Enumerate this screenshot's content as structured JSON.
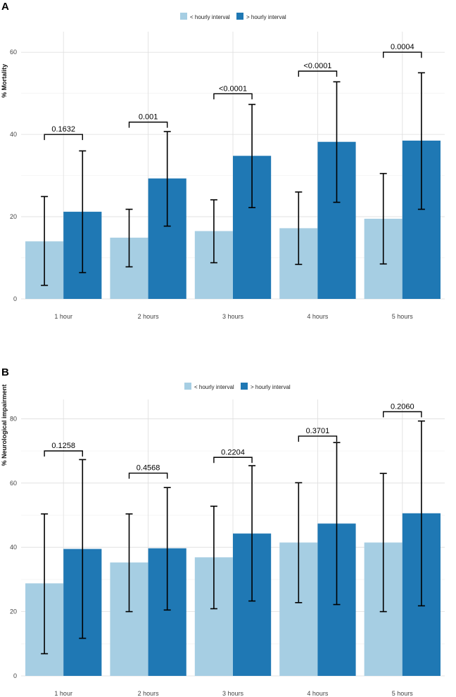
{
  "chart_data": [
    {
      "type": "bar",
      "panel": "A",
      "title": "",
      "xlabel": "",
      "ylabel": "% Mortality",
      "ylim": [
        0,
        65
      ],
      "yticks": [
        0,
        20,
        40,
        60
      ],
      "categories": [
        "1 hour",
        "2 hours",
        "3 hours",
        "4 hours",
        "5 hours"
      ],
      "legend": {
        "placement": "top-center"
      },
      "series": [
        {
          "name": "< hourly interval",
          "color": "#a6cee3",
          "values": [
            14.0,
            14.9,
            16.5,
            17.2,
            19.5
          ],
          "err_low": [
            3.3,
            7.8,
            8.8,
            8.4,
            8.5
          ],
          "err_high": [
            24.9,
            21.8,
            24.1,
            26.0,
            30.5
          ]
        },
        {
          "name": "> hourly interval",
          "color": "#1f78b4",
          "values": [
            21.2,
            29.3,
            34.8,
            38.2,
            38.5
          ],
          "err_low": [
            6.4,
            17.7,
            22.2,
            23.5,
            21.8
          ],
          "err_high": [
            36.0,
            40.7,
            47.3,
            52.8,
            55.0
          ]
        }
      ],
      "annotations": [
        {
          "category": "1 hour",
          "text": "0.1632",
          "y": 40.0
        },
        {
          "category": "2 hours",
          "text": "0.001",
          "y": 43.0
        },
        {
          "category": "3 hours",
          "text": "<0.0001",
          "y": 49.9
        },
        {
          "category": "4 hours",
          "text": "<0.0001",
          "y": 55.4
        },
        {
          "category": "5 hours",
          "text": "0.0004",
          "y": 60.0
        }
      ]
    },
    {
      "type": "bar",
      "panel": "B",
      "title": "",
      "xlabel": "",
      "ylabel": "% Neurological impairment",
      "ylim": [
        0,
        86
      ],
      "yticks": [
        0,
        20,
        40,
        60,
        80
      ],
      "categories": [
        "1 hour",
        "2 hours",
        "3 hours",
        "4 hours",
        "5 hours"
      ],
      "legend": {
        "placement": "top-center"
      },
      "series": [
        {
          "name": "< hourly interval",
          "color": "#a6cee3",
          "values": [
            28.8,
            35.3,
            36.9,
            41.5,
            41.5
          ],
          "err_low": [
            6.9,
            20.0,
            20.9,
            22.8,
            20.0
          ],
          "err_high": [
            50.4,
            50.4,
            52.8,
            60.1,
            63.0
          ]
        },
        {
          "name": "> hourly interval",
          "color": "#1f78b4",
          "values": [
            39.5,
            39.7,
            44.3,
            47.4,
            50.6
          ],
          "err_low": [
            11.7,
            20.5,
            23.3,
            22.2,
            21.8
          ],
          "err_high": [
            67.3,
            58.6,
            65.4,
            72.6,
            79.3
          ]
        }
      ],
      "annotations": [
        {
          "category": "1 hour",
          "text": "0.1258",
          "y": 70.0
        },
        {
          "category": "2 hours",
          "text": "0.4568",
          "y": 63.1
        },
        {
          "category": "3 hours",
          "text": "0.2204",
          "y": 68.0
        },
        {
          "category": "4 hours",
          "text": "0.3701",
          "y": 74.6
        },
        {
          "category": "5 hours",
          "text": "0.2060",
          "y": 82.2
        }
      ]
    }
  ]
}
